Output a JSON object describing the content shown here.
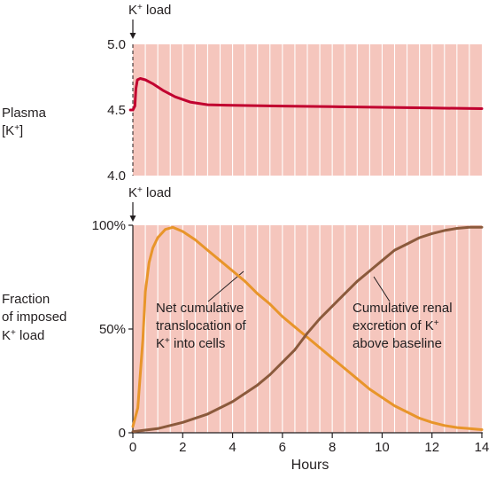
{
  "chart_data": [
    {
      "type": "line",
      "panel": "top",
      "ylabel": [
        "Plasma",
        "[K",
        "+",
        "]"
      ],
      "ylim": [
        4.0,
        5.0
      ],
      "yticks": [
        {
          "value": 4.0,
          "label": "4.0"
        },
        {
          "value": 4.5,
          "label": "4.5"
        },
        {
          "value": 5.0,
          "label": "5.0"
        }
      ],
      "xlim": [
        0,
        14
      ],
      "grid": true,
      "event": {
        "x": 0,
        "label": [
          "K",
          "+",
          " load"
        ]
      },
      "series": [
        {
          "color": "#c1002f",
          "points": [
            [
              -0.1,
              4.5
            ],
            [
              0.0,
              4.5
            ],
            [
              0.08,
              4.53
            ],
            [
              0.12,
              4.66
            ],
            [
              0.18,
              4.73
            ],
            [
              0.3,
              4.74
            ],
            [
              0.5,
              4.73
            ],
            [
              0.8,
              4.7
            ],
            [
              1.2,
              4.65
            ],
            [
              1.7,
              4.6
            ],
            [
              2.3,
              4.56
            ],
            [
              3,
              4.54
            ],
            [
              4,
              4.535
            ],
            [
              6,
              4.53
            ],
            [
              8,
              4.525
            ],
            [
              10,
              4.52
            ],
            [
              12,
              4.515
            ],
            [
              14,
              4.51
            ]
          ]
        }
      ]
    },
    {
      "type": "line",
      "panel": "bottom",
      "ylabel": [
        "Fraction",
        "of imposed",
        "K",
        "+",
        " load"
      ],
      "ylim": [
        0,
        100
      ],
      "yticks": [
        {
          "value": 0,
          "label": "0"
        },
        {
          "value": 50,
          "label": "50%"
        },
        {
          "value": 100,
          "label": "100%"
        }
      ],
      "xlim": [
        0,
        14
      ],
      "xticks": [
        0,
        2,
        4,
        6,
        8,
        10,
        12,
        14
      ],
      "xlabel": "Hours",
      "grid": true,
      "event": {
        "x": 0,
        "label": [
          "K",
          "+",
          " load"
        ]
      },
      "series": [
        {
          "color": "#e8952a",
          "label": [
            "Net cumulative",
            "translocation of",
            "K",
            "+",
            " into cells"
          ],
          "points": [
            [
              0,
              3
            ],
            [
              0.2,
              12
            ],
            [
              0.4,
              45
            ],
            [
              0.5,
              68
            ],
            [
              0.65,
              82
            ],
            [
              0.8,
              89
            ],
            [
              1.0,
              94
            ],
            [
              1.3,
              98
            ],
            [
              1.6,
              99
            ],
            [
              2.0,
              97
            ],
            [
              2.5,
              93
            ],
            [
              3,
              88
            ],
            [
              3.5,
              83
            ],
            [
              4,
              78
            ],
            [
              4.5,
              73
            ],
            [
              5,
              67
            ],
            [
              5.5,
              62
            ],
            [
              6,
              56
            ],
            [
              6.5,
              51
            ],
            [
              7,
              46
            ],
            [
              7.5,
              41
            ],
            [
              8,
              36
            ],
            [
              8.5,
              31
            ],
            [
              9,
              26
            ],
            [
              9.5,
              21
            ],
            [
              10,
              17
            ],
            [
              10.5,
              13
            ],
            [
              11,
              10
            ],
            [
              11.5,
              7
            ],
            [
              12,
              5
            ],
            [
              12.5,
              3.5
            ],
            [
              13,
              2.5
            ],
            [
              13.5,
              2
            ],
            [
              14,
              1.5
            ]
          ]
        },
        {
          "color": "#8b5a3c",
          "label": [
            "Cumulative renal",
            "excretion of K",
            "+",
            "above baseline"
          ],
          "points": [
            [
              0,
              0.5
            ],
            [
              1,
              2
            ],
            [
              2,
              5
            ],
            [
              3,
              9
            ],
            [
              4,
              15
            ],
            [
              5,
              23
            ],
            [
              5.5,
              28
            ],
            [
              6,
              34
            ],
            [
              6.5,
              40
            ],
            [
              7,
              48
            ],
            [
              7.5,
              55
            ],
            [
              8,
              61
            ],
            [
              8.5,
              67
            ],
            [
              9,
              73
            ],
            [
              9.5,
              78
            ],
            [
              10,
              83
            ],
            [
              10.5,
              88
            ],
            [
              11,
              91
            ],
            [
              11.5,
              94
            ],
            [
              12,
              96
            ],
            [
              12.5,
              97.5
            ],
            [
              13,
              98.5
            ],
            [
              13.5,
              99
            ],
            [
              14,
              99
            ]
          ]
        }
      ]
    }
  ]
}
